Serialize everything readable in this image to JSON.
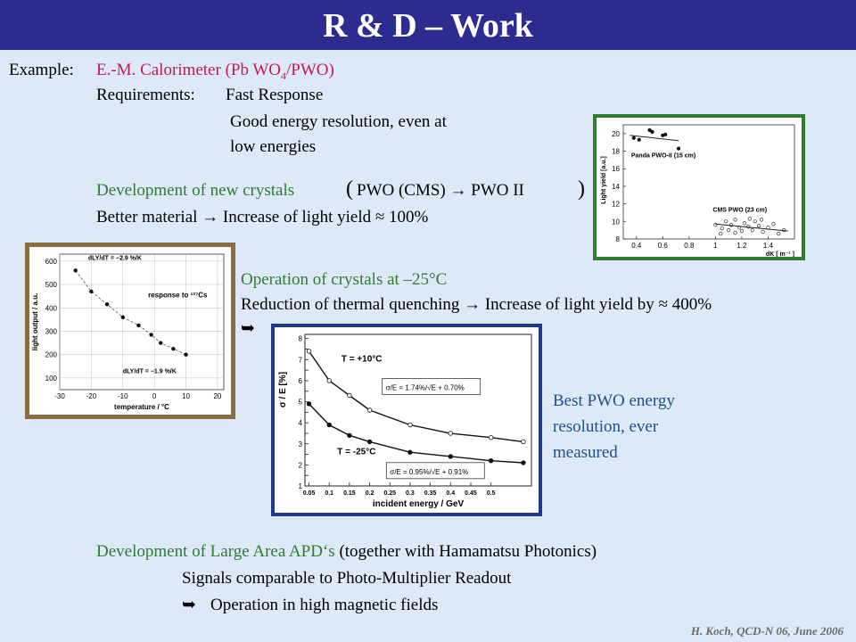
{
  "header": {
    "title": "R & D – Work"
  },
  "intro": {
    "example_label": "Example:",
    "example_value": "E.-M. Calorimeter (Pb WO",
    "example_sub": "4",
    "example_tail": "/PWO)",
    "requirements_label": "Requirements:",
    "req1": "Fast Response",
    "req2a": "Good energy resolution, even at",
    "req2b": "low energies"
  },
  "crystals": {
    "dev_label": "Development of new crystals",
    "dev_value": "PWO (CMS) → PWO II",
    "better": "Better material → Increase of light yield ≈ 100%"
  },
  "cooling": {
    "op_label": "Operation of crystals at –25°C",
    "reduction": "Reduction of thermal quenching → Increase of light yield by ≈ 400%",
    "arrow": "➥"
  },
  "best": {
    "line1": "Best PWO energy",
    "line2": "resolution, ever",
    "line3": "measured"
  },
  "apd": {
    "dev_label": "Development of Large Area APD‘s",
    "dev_tail": "(together with Hamamatsu Photonics)",
    "signals": "Signals comparable to Photo-Multiplier Readout",
    "arrow": "➥",
    "operation": "Operation in high magnetic fields"
  },
  "footer": {
    "credit": "H. Koch, QCD-N 06, June 2006"
  },
  "colors": {
    "title_bar": "#2b2b90",
    "background": "#dde9f6",
    "highlight": "#c2185b",
    "frame_green": "#2e7d32",
    "frame_brown": "#8b6b40",
    "frame_blue": "#1f3a8c"
  },
  "chart_data": [
    {
      "type": "scatter",
      "xlabel": "dK [ m⁻¹ ]",
      "ylabel": "Light yield [a.u.]",
      "x_ticks": [
        "0.4",
        "0.6",
        "0.8",
        "1",
        "1.2",
        "1.4"
      ],
      "y_ticks": [
        "8",
        "10",
        "12",
        "14",
        "16",
        "18",
        "20"
      ],
      "xlim": [
        0.3,
        1.6
      ],
      "ylim": [
        8,
        21
      ],
      "series": [
        {
          "name": "Panda PWO-II (15 cm)",
          "marker": "filled",
          "points": [
            [
              0.38,
              19.5
            ],
            [
              0.42,
              19.3
            ],
            [
              0.5,
              20.4
            ],
            [
              0.52,
              20.2
            ],
            [
              0.6,
              19.8
            ],
            [
              0.62,
              19.9
            ],
            [
              0.72,
              18.3
            ]
          ],
          "fit": [
            [
              0.35,
              19.8
            ],
            [
              0.72,
              19.2
            ]
          ]
        },
        {
          "name": "CMS PWO (23 cm)",
          "marker": "open",
          "points": [
            [
              1.0,
              9.6
            ],
            [
              1.05,
              9.2
            ],
            [
              1.08,
              10.0
            ],
            [
              1.1,
              9.0
            ],
            [
              1.12,
              9.6
            ],
            [
              1.15,
              10.2
            ],
            [
              1.18,
              9.3
            ],
            [
              1.2,
              8.9
            ],
            [
              1.22,
              9.8
            ],
            [
              1.25,
              9.4
            ],
            [
              1.28,
              9.0
            ],
            [
              1.3,
              10.0
            ],
            [
              1.33,
              9.5
            ],
            [
              1.36,
              8.8
            ],
            [
              1.4,
              9.3
            ],
            [
              1.44,
              9.7
            ],
            [
              1.48,
              8.6
            ],
            [
              1.52,
              9.0
            ],
            [
              1.04,
              8.6
            ],
            [
              1.15,
              8.7
            ],
            [
              1.26,
              10.3
            ],
            [
              1.35,
              10.2
            ]
          ],
          "fit": [
            [
              1.0,
              9.7
            ],
            [
              1.55,
              8.9
            ]
          ]
        }
      ]
    },
    {
      "type": "line",
      "title": "response to ¹³⁷Cs",
      "xlabel": "temperature / °C",
      "ylabel": "light output / a.u.",
      "x_ticks": [
        "-30",
        "-20",
        "-10",
        "0",
        "10",
        "20"
      ],
      "y_ticks": [
        "100",
        "200",
        "300",
        "400",
        "500",
        "600"
      ],
      "xlim": [
        -30,
        22
      ],
      "ylim": [
        50,
        630
      ],
      "points": [
        [
          -25,
          560
        ],
        [
          -20,
          470
        ],
        [
          -15,
          415
        ],
        [
          -10,
          360
        ],
        [
          -5,
          325
        ],
        [
          -1,
          285
        ],
        [
          2,
          250
        ],
        [
          6,
          225
        ],
        [
          10,
          200
        ]
      ],
      "annotation_top": "dLY/dT = −2.9 %/K",
      "annotation_bottom": "dLY/dT = −1.9 %/K"
    },
    {
      "type": "line",
      "xlabel": "incident energy / GeV",
      "ylabel": "σ / E [%]",
      "x_ticks": [
        "0.05",
        "0.1",
        "0.15",
        "0.2",
        "0.25",
        "0.3",
        "0.35",
        "0.4",
        "0.45",
        "0.5"
      ],
      "y_ticks": [
        "1",
        "1.5",
        "2",
        "2.5",
        "3",
        "3.5",
        "4",
        "4.5",
        "5",
        "5.5",
        "6",
        "6.5",
        "7",
        "7.5",
        "8"
      ],
      "xlim": [
        0.04,
        0.6
      ],
      "ylim": [
        1,
        8.2
      ],
      "series": [
        {
          "name": "T = +10°C",
          "marker": "open",
          "points": [
            [
              0.05,
              7.4
            ],
            [
              0.1,
              6.0
            ],
            [
              0.15,
              5.3
            ],
            [
              0.2,
              4.6
            ],
            [
              0.3,
              3.9
            ],
            [
              0.4,
              3.5
            ],
            [
              0.5,
              3.3
            ],
            [
              0.58,
              3.1
            ]
          ],
          "formula": "σ/E = 1.74%/√E + 0.70%"
        },
        {
          "name": "T = -25°C",
          "marker": "filled",
          "points": [
            [
              0.05,
              4.9
            ],
            [
              0.1,
              3.9
            ],
            [
              0.15,
              3.4
            ],
            [
              0.2,
              3.1
            ],
            [
              0.3,
              2.6
            ],
            [
              0.4,
              2.4
            ],
            [
              0.5,
              2.2
            ],
            [
              0.58,
              2.1
            ]
          ],
          "formula": "σ/E = 0.95%/√E + 0.91%"
        }
      ]
    }
  ]
}
